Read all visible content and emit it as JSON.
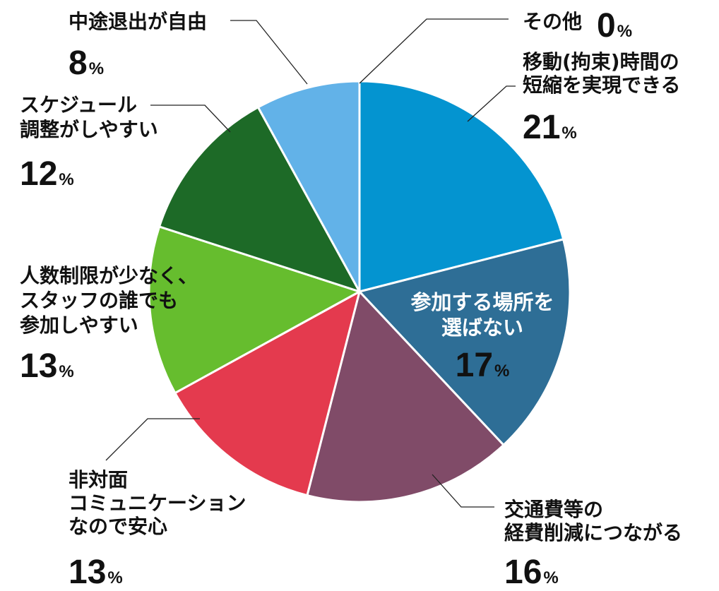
{
  "chart_data": {
    "type": "pie",
    "title": "",
    "start": "12 o'clock, clockwise",
    "slices": [
      {
        "lines": [
          "移動(拘束)時間の",
          "短縮を実現できる"
        ],
        "value": 21,
        "unit": "%",
        "color": "#0494D0"
      },
      {
        "lines": [
          "参加する場所を",
          "選ばない"
        ],
        "value": 17,
        "unit": "%",
        "color": "#2E6E96"
      },
      {
        "lines": [
          "交通費等の",
          "経費削減につながる"
        ],
        "value": 16,
        "unit": "%",
        "color": "#804B68"
      },
      {
        "lines": [
          "非対面",
          "コミュニケーション",
          "なので安心"
        ],
        "value": 13,
        "unit": "%",
        "color": "#E43A4E"
      },
      {
        "lines": [
          "人数制限が少なく、",
          "スタッフの誰でも",
          "参加しやすい"
        ],
        "value": 13,
        "unit": "%",
        "color": "#66BD2E"
      },
      {
        "lines": [
          "スケジュール",
          "調整がしやすい"
        ],
        "value": 12,
        "unit": "%",
        "color": "#1D6A27"
      },
      {
        "lines": [
          "中途退出が自由"
        ],
        "value": 8,
        "unit": "%",
        "color": "#62B2E8"
      },
      {
        "lines": [
          "その他"
        ],
        "value": 0,
        "unit": "%",
        "color": "#9E9E9E"
      }
    ]
  }
}
